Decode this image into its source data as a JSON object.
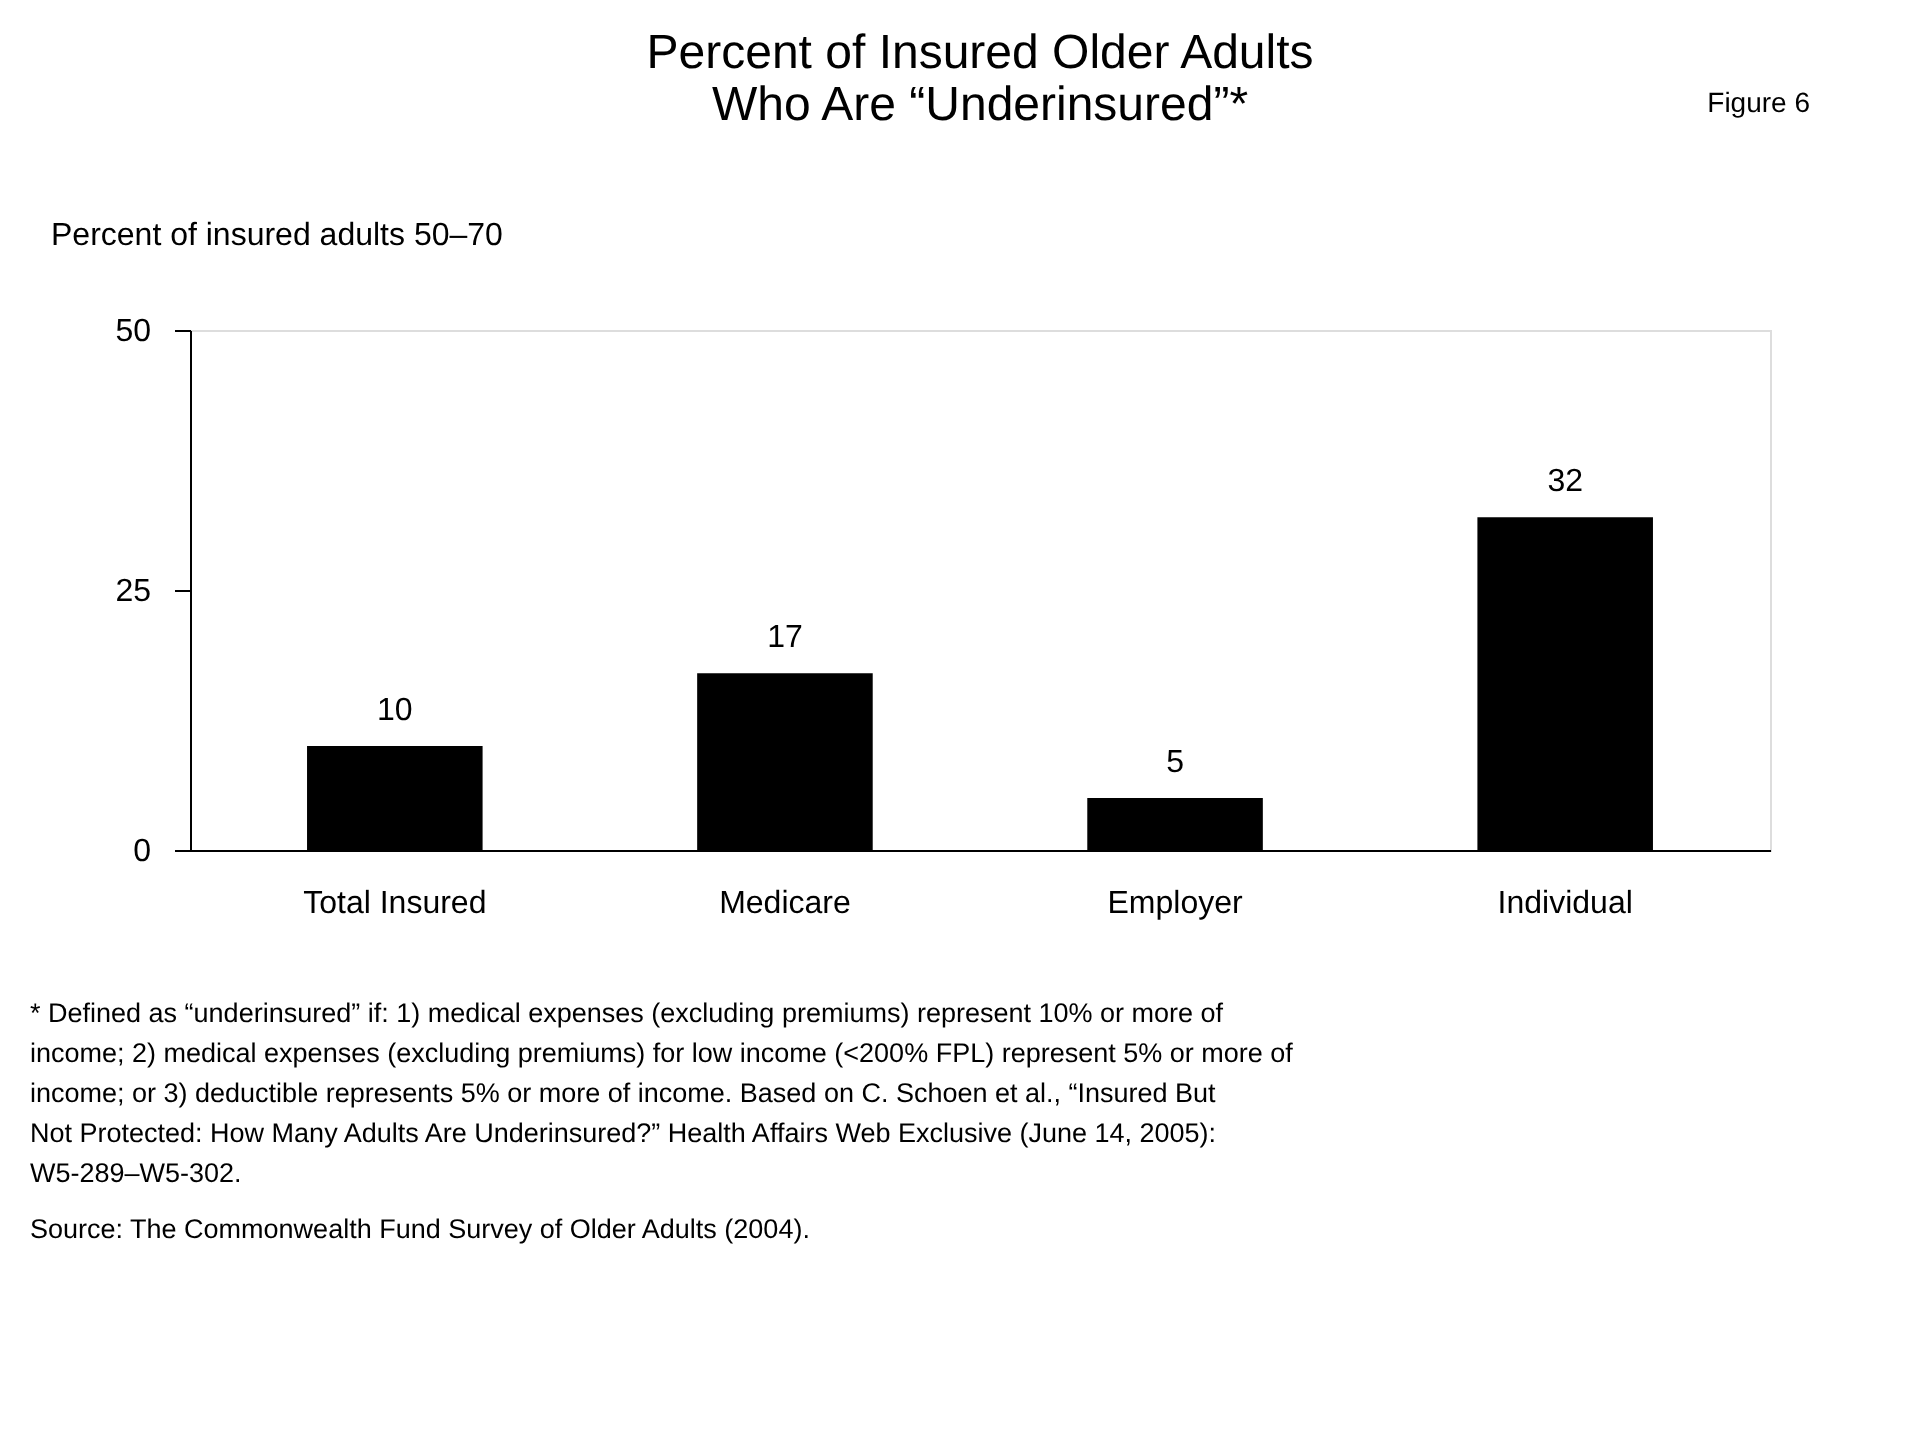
{
  "chart_data": {
    "type": "bar",
    "title": "Percent of Insured Older Adults\nWho Are “Underinsured”*",
    "ylabel": "Percent of insured adults 50–70",
    "categories": [
      "Total Insured",
      "Medicare",
      "Employer",
      "Individual"
    ],
    "values": [
      10,
      17,
      5,
      32
    ],
    "color": "#000000",
    "ylim": [
      0,
      50
    ],
    "yticks": [
      0,
      25,
      50
    ],
    "grid": false,
    "data_labels": true,
    "annotations": [
      "Figure 6",
      "* Defined as “underinsured” if: 1) medical expenses (excluding premiums) represent 10% or more of income; 2) medical expenses (excluding premiums) for low income (<200% FPL) represent 5% or more of income; or 3) deductible represents 5% or more of income. Based on C. Schoen et al., “Insured But Not Protected: How Many Adults Are Underinsured?” Health Affairs Web Exclusive (June 14, 2005): W5-289–W5-302.",
      "Source: The Commonwealth Fund Survey of Older Adults (2004)."
    ]
  }
}
